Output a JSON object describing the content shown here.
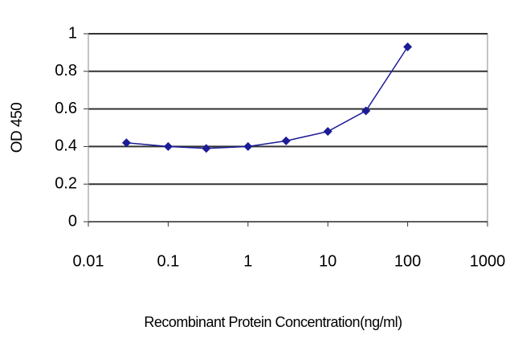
{
  "chart_data": {
    "type": "line",
    "x_label": "Recombinant Protein Concentration(ng/ml)",
    "y_label": "OD 450",
    "x": [
      0.03,
      0.1,
      0.3,
      1,
      3,
      10,
      30,
      100
    ],
    "series": [
      {
        "color": "#1c1c96",
        "values": [
          0.42,
          0.4,
          0.39,
          0.4,
          0.43,
          0.48,
          0.59,
          0.93
        ]
      }
    ],
    "xlim": [
      0.01,
      1000
    ],
    "xticks": [
      0.01,
      0.1,
      1,
      10,
      100,
      1000
    ],
    "xlog": true,
    "ylim": [
      0,
      1
    ],
    "yticks": [
      0,
      0.2,
      0.4,
      0.6,
      0.8,
      1
    ],
    "grid": true
  }
}
